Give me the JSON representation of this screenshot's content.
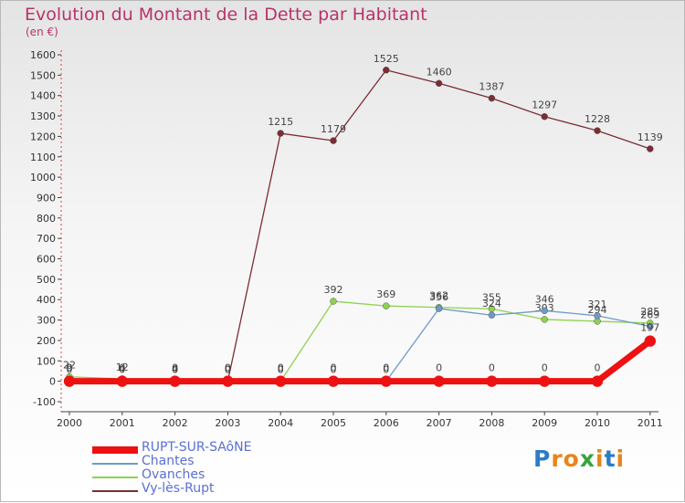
{
  "chart_data": {
    "type": "line",
    "title": "Evolution du Montant de la Dette par Habitant",
    "unit_label": "(en €)",
    "xlabel": "",
    "ylabel": "",
    "categories": [
      "2000",
      "2001",
      "2002",
      "2003",
      "2004",
      "2005",
      "2006",
      "2007",
      "2008",
      "2009",
      "2010",
      "2011"
    ],
    "ylim": [
      -100,
      1600
    ],
    "yticks": [
      "-100",
      "0",
      "100",
      "200",
      "300",
      "400",
      "500",
      "600",
      "700",
      "800",
      "900",
      "1000",
      "1100",
      "1200",
      "1300",
      "1400",
      "1500",
      "1600"
    ],
    "grid": false,
    "series": [
      {
        "name": "Vy-lès-Rupt",
        "color": "#7a2e34",
        "values": [
          0,
          0,
          0,
          0,
          1215,
          1179,
          1525,
          1460,
          1387,
          1297,
          1228,
          1139
        ],
        "labels": [
          "0",
          "0",
          "0",
          "0",
          "1215",
          "1179",
          "1525",
          "1460",
          "1387",
          "1297",
          "1228",
          "1139"
        ]
      },
      {
        "name": "Ovanches",
        "color": "#8fd14f",
        "values": [
          22,
          12,
          0,
          0,
          0,
          392,
          369,
          362,
          355,
          303,
          294,
          285
        ],
        "labels": [
          "22",
          "12",
          "0",
          "0",
          "0",
          "392",
          "369",
          "362",
          "355",
          "303",
          "294",
          "285"
        ]
      },
      {
        "name": "Chantes",
        "color": "#6e9ac8",
        "values": [
          9,
          4,
          4,
          0,
          0,
          0,
          0,
          356,
          324,
          346,
          321,
          269
        ],
        "labels": [
          "9",
          "4",
          "4",
          "0",
          "0",
          "0",
          "0",
          "356",
          "324",
          "346",
          "321",
          "269"
        ]
      },
      {
        "name": "RUPT-SUR-SAôNE",
        "color": "#ee1111",
        "values": [
          0,
          0,
          0,
          0,
          0,
          0,
          0,
          0,
          0,
          0,
          0,
          197
        ],
        "labels": [
          "0",
          "0",
          "0",
          "0",
          "0",
          "0",
          "0",
          "0",
          "0",
          "0",
          "0",
          "197"
        ]
      }
    ],
    "legend": [
      "RUPT-SUR-SAôNE",
      "Chantes",
      "Ovanches",
      "Vy-lès-Rupt"
    ],
    "legend_position": "bottom-left"
  },
  "logo": {
    "letters": [
      "P",
      "r",
      "o",
      "x",
      "i",
      "t",
      "i"
    ],
    "colors": [
      "#2b7cc8",
      "#e8841a",
      "#e8841a",
      "#36a43a",
      "#e8841a",
      "#2b7cc8",
      "#e8841a"
    ]
  }
}
